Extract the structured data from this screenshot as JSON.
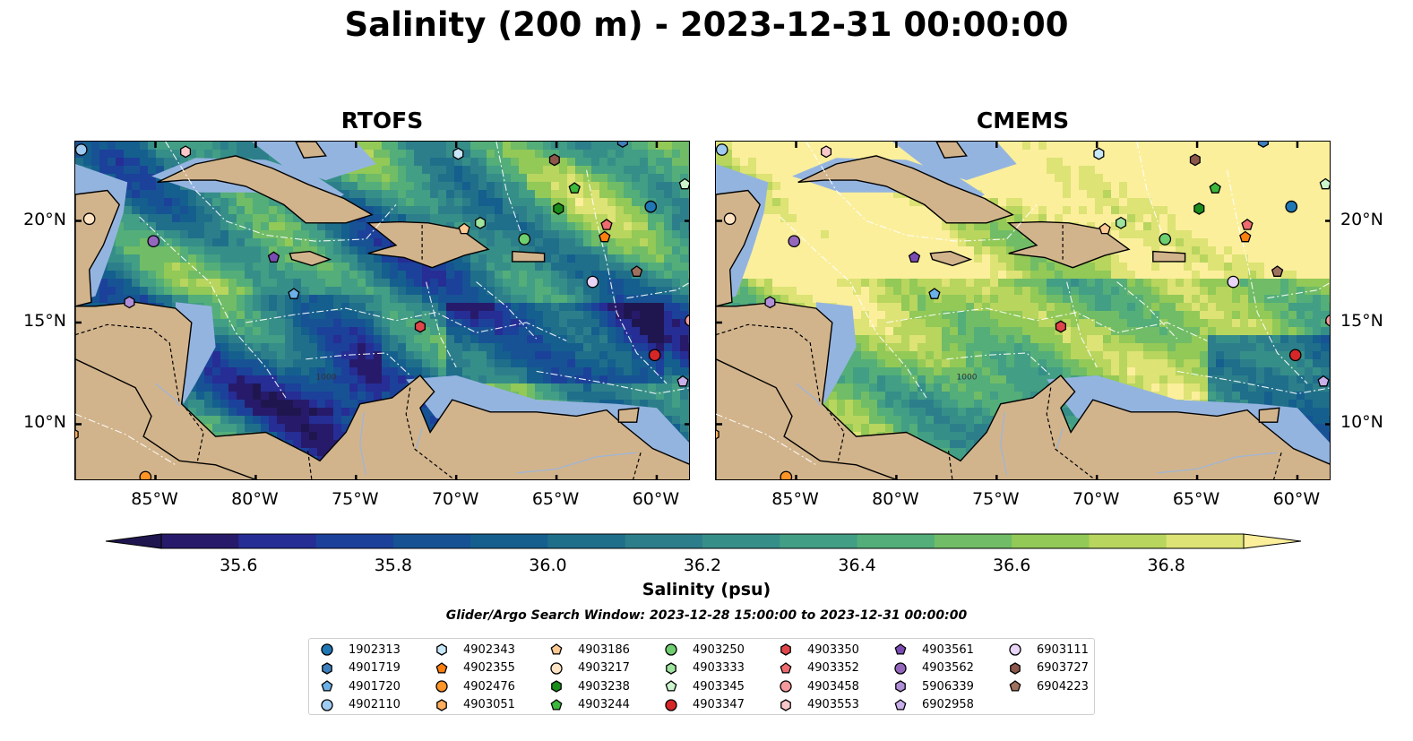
{
  "title": "Salinity (200 m) - 2023-12-31 00:00:00",
  "panels": [
    {
      "title": "RTOFS",
      "id": "rtofs"
    },
    {
      "title": "CMEMS",
      "id": "cmems"
    }
  ],
  "map": {
    "lon_range": [
      -89,
      -58.3
    ],
    "lat_range": [
      7.2,
      23.9
    ],
    "lon_ticks": [
      {
        "value": -85,
        "label": "85°W"
      },
      {
        "value": -80,
        "label": "80°W"
      },
      {
        "value": -75,
        "label": "75°W"
      },
      {
        "value": -70,
        "label": "70°W"
      },
      {
        "value": -65,
        "label": "65°W"
      },
      {
        "value": -60,
        "label": "60°W"
      }
    ],
    "lat_ticks": [
      {
        "value": 20,
        "label": "20°N"
      },
      {
        "value": 15,
        "label": "15°N"
      },
      {
        "value": 10,
        "label": "10°N"
      }
    ],
    "contour_label": "1000",
    "colors": {
      "land": "#d2b48c",
      "shelf": "#94b4e0",
      "deep": "#2a1a6e",
      "eez_line": "#ffffff",
      "border": "#000000"
    }
  },
  "colorbar": {
    "label": "Salinity (psu)",
    "min": 35.5,
    "max": 36.9,
    "step": 0.1,
    "ticks": [
      {
        "value": 35.6,
        "label": "35.6"
      },
      {
        "value": 35.8,
        "label": "35.8"
      },
      {
        "value": 36.0,
        "label": "36.0"
      },
      {
        "value": 36.2,
        "label": "36.2"
      },
      {
        "value": 36.4,
        "label": "36.4"
      },
      {
        "value": 36.6,
        "label": "36.6"
      },
      {
        "value": 36.8,
        "label": "36.8"
      }
    ],
    "colors": [
      "#281a6b",
      "#262d95",
      "#1c419a",
      "#175394",
      "#145f8e",
      "#1f6f8b",
      "#2c7f8a",
      "#368e89",
      "#429e84",
      "#53ae79",
      "#71bc66",
      "#92c957",
      "#b8d55e",
      "#dde374"
    ],
    "over_color": "#fbef9c",
    "under_color": "#1f1650"
  },
  "search_window": "Glider/Argo Search Window: 2023-12-28 15:00:00 to 2023-12-31 00:00:00",
  "floats": [
    {
      "id": "1902313",
      "marker": "circle",
      "color": "#1f77b4",
      "lon": -60.3,
      "lat": 20.7
    },
    {
      "id": "4901719",
      "marker": "hexagon",
      "color": "#3d80bd",
      "lon": -61.7,
      "lat": 23.9
    },
    {
      "id": "4901720",
      "marker": "pentagon",
      "color": "#6cb0e8",
      "lon": -78.1,
      "lat": 16.4
    },
    {
      "id": "4902110",
      "marker": "circle",
      "color": "#9fcbf0",
      "lon": -88.7,
      "lat": 23.5
    },
    {
      "id": "4902343",
      "marker": "hexagon",
      "color": "#c8e7f8",
      "lon": -69.9,
      "lat": 23.3
    },
    {
      "id": "4902355",
      "marker": "pentagon",
      "color": "#ff7f0e",
      "lon": -62.6,
      "lat": 19.2
    },
    {
      "id": "4902476",
      "marker": "circle",
      "color": "#ff9427",
      "lon": -85.5,
      "lat": 7.4
    },
    {
      "id": "4903051",
      "marker": "hexagon",
      "color": "#ffae5c",
      "lon": -89.1,
      "lat": 9.5
    },
    {
      "id": "4903186",
      "marker": "pentagon",
      "color": "#ffc994",
      "lon": -69.6,
      "lat": 19.6
    },
    {
      "id": "4903217",
      "marker": "circle",
      "color": "#ffe4c4",
      "lon": -88.3,
      "lat": 20.1
    },
    {
      "id": "4903238",
      "marker": "hexagon",
      "color": "#1a8c1a",
      "lon": -64.9,
      "lat": 20.6
    },
    {
      "id": "4903244",
      "marker": "pentagon",
      "color": "#3cb83c",
      "lon": -64.1,
      "lat": 21.6
    },
    {
      "id": "4903250",
      "marker": "circle",
      "color": "#6fce6f",
      "lon": -66.6,
      "lat": 19.1
    },
    {
      "id": "4903333",
      "marker": "hexagon",
      "color": "#9ee39e",
      "lon": -68.8,
      "lat": 19.9
    },
    {
      "id": "4903345",
      "marker": "pentagon",
      "color": "#ccf5cc",
      "lon": -58.6,
      "lat": 21.8
    },
    {
      "id": "4903347",
      "marker": "circle",
      "color": "#d62728",
      "lon": -60.1,
      "lat": 13.4
    },
    {
      "id": "4903350",
      "marker": "hexagon",
      "color": "#e0454a",
      "lon": -71.8,
      "lat": 14.8
    },
    {
      "id": "4903352",
      "marker": "pentagon",
      "color": "#ee6b70",
      "lon": -62.5,
      "lat": 19.8
    },
    {
      "id": "4903458",
      "marker": "circle",
      "color": "#f59a9c",
      "lon": -58.3,
      "lat": 15.1
    },
    {
      "id": "4903553",
      "marker": "hexagon",
      "color": "#fbc8c9",
      "lon": -83.5,
      "lat": 23.4
    },
    {
      "id": "4903561",
      "marker": "pentagon",
      "color": "#7a4cb3",
      "lon": -79.1,
      "lat": 18.2
    },
    {
      "id": "4903562",
      "marker": "circle",
      "color": "#9467bd",
      "lon": -85.1,
      "lat": 19.0
    },
    {
      "id": "5906339",
      "marker": "hexagon",
      "color": "#b08fd8",
      "lon": -86.3,
      "lat": 16.0
    },
    {
      "id": "6902958",
      "marker": "pentagon",
      "color": "#c9b0ea",
      "lon": -58.7,
      "lat": 12.1
    },
    {
      "id": "6903111",
      "marker": "circle",
      "color": "#e8d5f7",
      "lon": -63.2,
      "lat": 17.0
    },
    {
      "id": "6903727",
      "marker": "hexagon",
      "color": "#8c564b",
      "lon": -65.1,
      "lat": 23.0
    },
    {
      "id": "6904223",
      "marker": "pentagon",
      "color": "#a0705f",
      "lon": -61.0,
      "lat": 17.5
    }
  ]
}
